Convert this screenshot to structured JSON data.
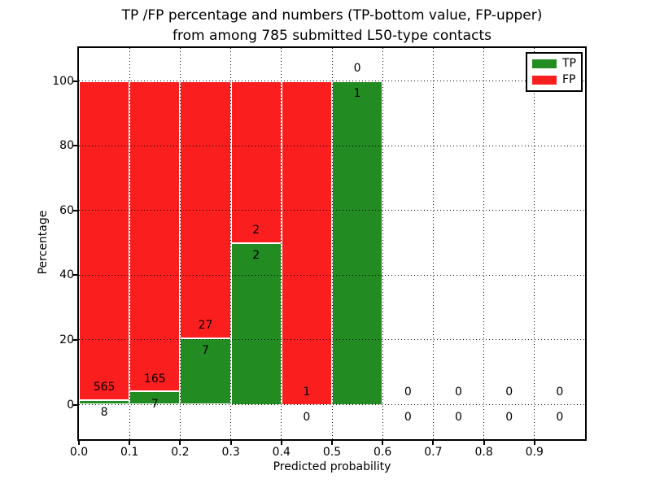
{
  "chart_data": {
    "type": "bar",
    "stacked": true,
    "title_lines": [
      "TP /FP percentage and numbers (TP-bottom value, FP-upper)",
      "from among 785 submitted L50-type contacts"
    ],
    "total_contacts": 785,
    "xlabel": "Predicted probability",
    "ylabel": "Percentage",
    "x_tick_labels": [
      "0.0",
      "0.1",
      "0.2",
      "0.3",
      "0.4",
      "0.5",
      "0.6",
      "0.7",
      "0.8",
      "0.9"
    ],
    "y_tick_values": [
      0,
      20,
      40,
      60,
      80,
      100
    ],
    "xlim": [
      0.0,
      1.0
    ],
    "ylim_percent": [
      0,
      100
    ],
    "bin_edges": [
      0.0,
      0.1,
      0.2,
      0.3,
      0.4,
      0.5,
      0.6,
      0.7,
      0.8,
      0.9,
      1.0
    ],
    "grid": "dotted",
    "series": [
      {
        "name": "TP",
        "color": "#228b22",
        "counts": [
          8,
          7,
          7,
          2,
          0,
          1,
          0,
          0,
          0,
          0
        ]
      },
      {
        "name": "FP",
        "color": "#fb1e1e",
        "counts": [
          565,
          165,
          27,
          2,
          1,
          0,
          0,
          0,
          0,
          0
        ]
      }
    ],
    "tp_percent_per_bin": [
      1.4,
      4.07,
      20.59,
      50.0,
      0.0,
      100.0,
      null,
      null,
      null,
      null
    ],
    "legend": {
      "position": "upper-right",
      "entries": [
        "TP",
        "FP"
      ]
    }
  },
  "colors": {
    "background": "#ffffff",
    "text": "#000000",
    "axis": "#000000",
    "bar_edge": "#ffffff"
  }
}
